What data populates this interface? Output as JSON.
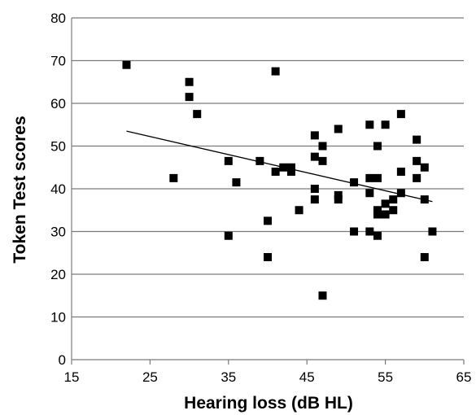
{
  "chart_data": {
    "type": "scatter",
    "title": "",
    "xlabel": "Hearing loss (dB HL)",
    "ylabel": "Token Test scores",
    "xlim": [
      15,
      65
    ],
    "ylim": [
      0,
      80
    ],
    "xticks": [
      "15",
      "25",
      "35",
      "45",
      "55",
      "65"
    ],
    "yticks": [
      "0",
      "10",
      "20",
      "30",
      "40",
      "50",
      "60",
      "70",
      "80"
    ],
    "grid": "horizontal",
    "legend": "none",
    "marker_color": "#000000",
    "points": [
      {
        "x": 22,
        "y": 69
      },
      {
        "x": 28,
        "y": 42.5
      },
      {
        "x": 30,
        "y": 65
      },
      {
        "x": 30,
        "y": 61.5
      },
      {
        "x": 31,
        "y": 57.5
      },
      {
        "x": 35,
        "y": 46.5
      },
      {
        "x": 35,
        "y": 29
      },
      {
        "x": 36,
        "y": 41.5
      },
      {
        "x": 39,
        "y": 46.5
      },
      {
        "x": 40,
        "y": 32.5
      },
      {
        "x": 40,
        "y": 24
      },
      {
        "x": 41,
        "y": 67.5
      },
      {
        "x": 41,
        "y": 44
      },
      {
        "x": 42,
        "y": 45
      },
      {
        "x": 43,
        "y": 45
      },
      {
        "x": 43,
        "y": 44
      },
      {
        "x": 44,
        "y": 35
      },
      {
        "x": 46,
        "y": 52.5
      },
      {
        "x": 46,
        "y": 47.5
      },
      {
        "x": 46,
        "y": 40
      },
      {
        "x": 46,
        "y": 37.5
      },
      {
        "x": 47,
        "y": 50
      },
      {
        "x": 47,
        "y": 46.5
      },
      {
        "x": 47,
        "y": 15
      },
      {
        "x": 49,
        "y": 54
      },
      {
        "x": 49,
        "y": 38.5
      },
      {
        "x": 49,
        "y": 37.5
      },
      {
        "x": 51,
        "y": 41.5
      },
      {
        "x": 51,
        "y": 30
      },
      {
        "x": 53,
        "y": 55
      },
      {
        "x": 53,
        "y": 42.5
      },
      {
        "x": 53,
        "y": 39
      },
      {
        "x": 53,
        "y": 30
      },
      {
        "x": 54,
        "y": 50
      },
      {
        "x": 54,
        "y": 42.5
      },
      {
        "x": 54,
        "y": 35
      },
      {
        "x": 54,
        "y": 34
      },
      {
        "x": 54,
        "y": 29
      },
      {
        "x": 55,
        "y": 55
      },
      {
        "x": 55,
        "y": 36.5
      },
      {
        "x": 55,
        "y": 34
      },
      {
        "x": 56,
        "y": 37.5
      },
      {
        "x": 56,
        "y": 35
      },
      {
        "x": 57,
        "y": 57.5
      },
      {
        "x": 57,
        "y": 44
      },
      {
        "x": 57,
        "y": 39
      },
      {
        "x": 59,
        "y": 51.5
      },
      {
        "x": 59,
        "y": 46.5
      },
      {
        "x": 59,
        "y": 42.5
      },
      {
        "x": 60,
        "y": 45
      },
      {
        "x": 60,
        "y": 37.5
      },
      {
        "x": 60,
        "y": 24
      },
      {
        "x": 61,
        "y": 30
      }
    ],
    "trendline": {
      "x": [
        22,
        61
      ],
      "y": [
        53.5,
        37
      ]
    }
  }
}
